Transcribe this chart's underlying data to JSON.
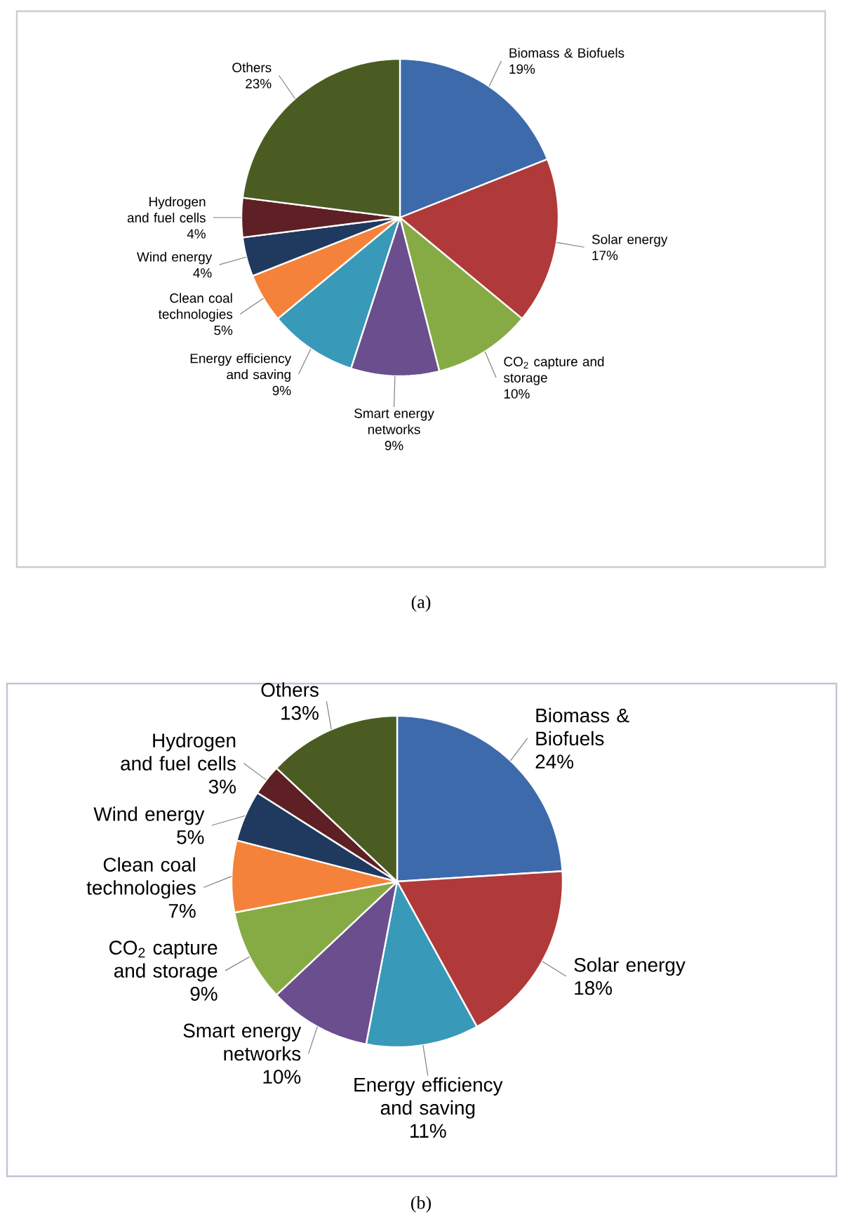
{
  "chart_data": [
    {
      "type": "pie",
      "categories": [
        "Biomass & Biofuels",
        "Solar energy",
        "CO$_{2}$ capture and storage",
        "Smart energy networks",
        "Energy efficiency and saving",
        "Clean coal technologies",
        "Wind energy",
        "Hydrogen and fuel cells",
        "Others"
      ],
      "values": [
        19,
        17,
        10,
        9,
        9,
        5,
        4,
        4,
        23
      ],
      "value_labels": [
        "19%",
        "17%",
        "10%",
        "9%",
        "9%",
        "5%",
        "4%",
        "4%",
        "23%"
      ],
      "colors": [
        "#3d6aaa",
        "#b03a3a",
        "#86ab44",
        "#6a4e8e",
        "#3899b8",
        "#f5823a",
        "#1f3a5e",
        "#5e2024",
        "#4a5c22"
      ],
      "annotations": [
        "(a)"
      ]
    },
    {
      "type": "pie",
      "categories": [
        "Biomass & Biofuels",
        "Solar energy",
        "Energy efficiency and saving",
        "Smart energy networks",
        "CO$_{2}$ capture and storage",
        "Clean coal technologies",
        "Wind energy",
        "Hydrogen and fuel cells",
        "Others"
      ],
      "values": [
        24,
        18,
        11,
        10,
        9,
        7,
        5,
        3,
        13
      ],
      "value_labels": [
        "24%",
        "18%",
        "11%",
        "10%",
        "9%",
        "7%",
        "5%",
        "3%",
        "13%"
      ],
      "colors": [
        "#3d6aaa",
        "#b03a3a",
        "#3899b8",
        "#6a4e8e",
        "#86ab44",
        "#f5823a",
        "#1f3a5e",
        "#5e2024",
        "#4a5c22"
      ],
      "annotations": [
        "(b)"
      ]
    }
  ]
}
